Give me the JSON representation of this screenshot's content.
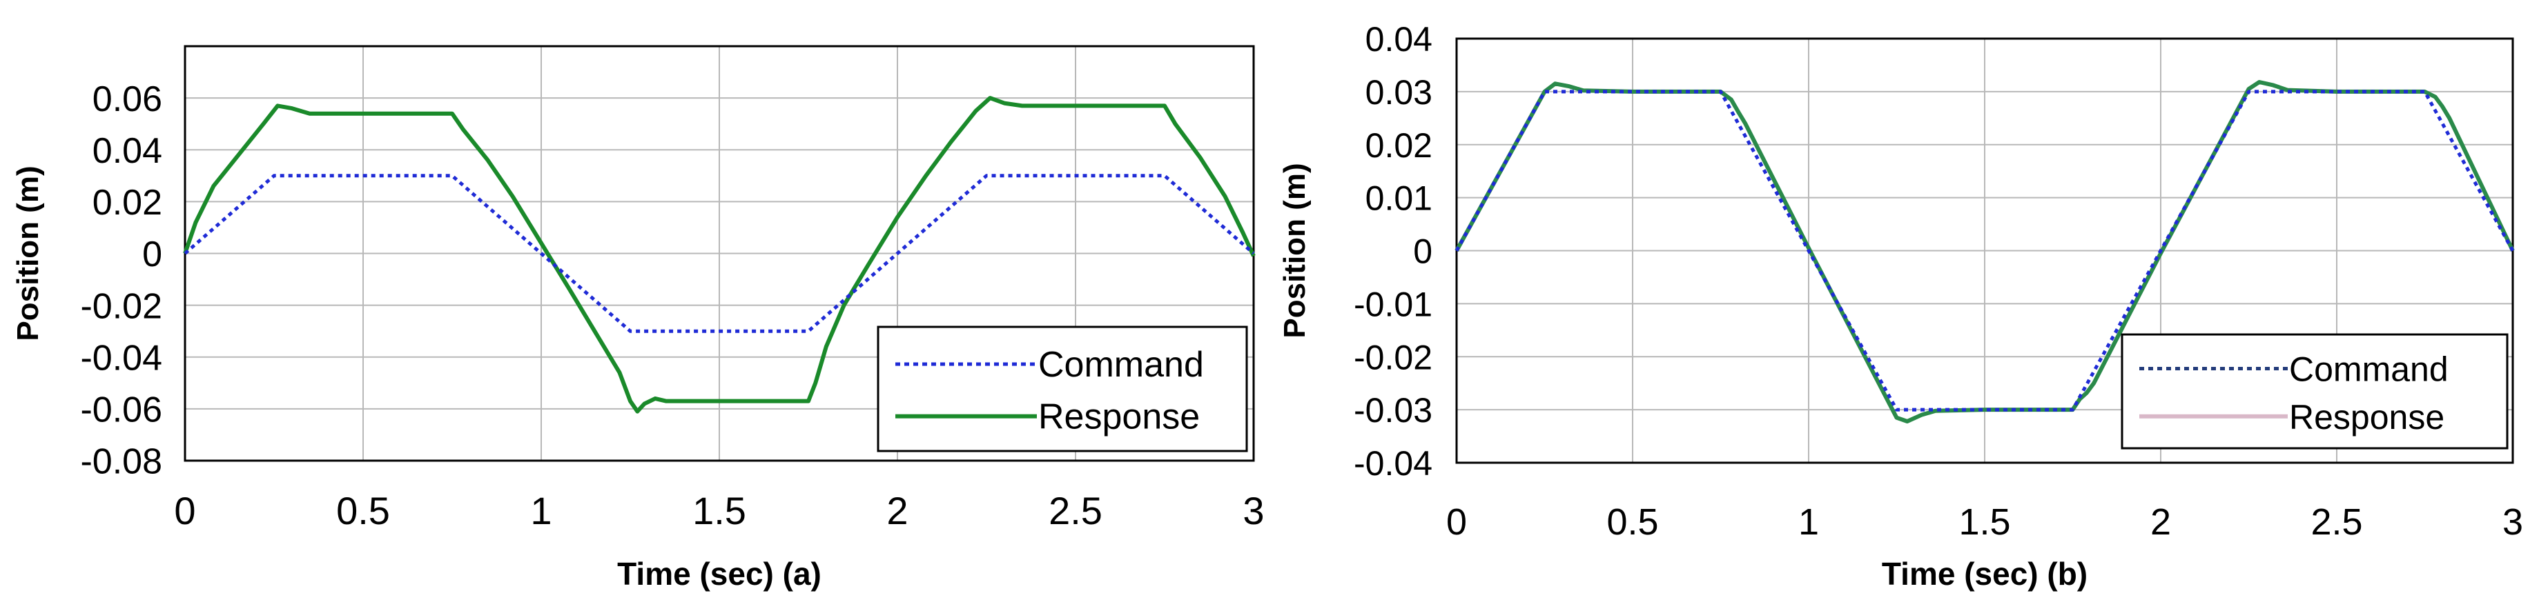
{
  "colors": {
    "command": "#1f2bd6",
    "response_a": "#1a8a2a",
    "response_b": "#2a8a4a",
    "grid": "#b8b8b8",
    "legend_cmd_b": "#233b7a",
    "legend_resp_b": "#d9b8c8"
  },
  "chart_data": [
    {
      "type": "line",
      "title": "",
      "xlabel": "Time (sec) (a)",
      "ylabel": "Position (m)",
      "xlim": [
        0,
        3
      ],
      "ylim": [
        -0.08,
        0.08
      ],
      "xticks": [
        0,
        0.5,
        1,
        1.5,
        2,
        2.5,
        3
      ],
      "xtick_labels": [
        "0",
        "0.5",
        "1",
        "1.5",
        "2",
        "2.5",
        "3"
      ],
      "yticks": [
        -0.08,
        -0.06,
        -0.04,
        -0.02,
        0,
        0.02,
        0.04,
        0.06
      ],
      "ytick_labels": [
        "-0.08",
        "-0.06",
        "-0.04",
        "-0.02",
        "0",
        "0.02",
        "0.04",
        "0.06"
      ],
      "grid": true,
      "legend": "bottom-right",
      "series": [
        {
          "name": "Command",
          "style": "dotted",
          "x": [
            0,
            0.25,
            0.75,
            1.25,
            1.75,
            2.25,
            2.75,
            3
          ],
          "y": [
            0,
            0.03,
            0.03,
            -0.03,
            -0.03,
            0.03,
            0.03,
            0
          ]
        },
        {
          "name": "Response",
          "style": "solid",
          "x": [
            0,
            0.03,
            0.08,
            0.15,
            0.22,
            0.26,
            0.3,
            0.35,
            0.5,
            0.75,
            0.78,
            0.85,
            0.92,
            1.0,
            1.08,
            1.15,
            1.22,
            1.25,
            1.27,
            1.29,
            1.32,
            1.35,
            1.5,
            1.75,
            1.77,
            1.8,
            1.85,
            1.92,
            2.0,
            2.08,
            2.15,
            2.22,
            2.26,
            2.3,
            2.35,
            2.5,
            2.75,
            2.78,
            2.85,
            2.92,
            2.97,
            3.0
          ],
          "y": [
            0,
            0.012,
            0.026,
            0.038,
            0.05,
            0.057,
            0.056,
            0.054,
            0.054,
            0.054,
            0.048,
            0.036,
            0.022,
            0.004,
            -0.014,
            -0.03,
            -0.046,
            -0.057,
            -0.061,
            -0.058,
            -0.056,
            -0.057,
            -0.057,
            -0.057,
            -0.05,
            -0.036,
            -0.02,
            -0.004,
            0.014,
            0.03,
            0.043,
            0.055,
            0.06,
            0.058,
            0.057,
            0.057,
            0.057,
            0.05,
            0.037,
            0.022,
            0.008,
            -0.001
          ]
        }
      ]
    },
    {
      "type": "line",
      "title": "",
      "xlabel": "Time (sec) (b)",
      "ylabel": "Position (m)",
      "xlim": [
        0,
        3
      ],
      "ylim": [
        -0.04,
        0.04
      ],
      "xticks": [
        0,
        0.5,
        1,
        1.5,
        2,
        2.5,
        3
      ],
      "xtick_labels": [
        "0",
        "0.5",
        "1",
        "1.5",
        "2",
        "2.5",
        "3"
      ],
      "yticks": [
        -0.04,
        -0.03,
        -0.02,
        -0.01,
        0,
        0.01,
        0.02,
        0.03,
        0.04
      ],
      "ytick_labels": [
        "-0.04",
        "-0.03",
        "-0.02",
        "-0.01",
        "0",
        "0.01",
        "0.02",
        "0.03",
        "0.04"
      ],
      "grid": true,
      "legend": "bottom-right",
      "series": [
        {
          "name": "Command",
          "style": "dotted",
          "x": [
            0,
            0.25,
            0.75,
            1.25,
            1.75,
            2.25,
            2.75,
            3
          ],
          "y": [
            0,
            0.03,
            0.03,
            -0.03,
            -0.03,
            0.03,
            0.03,
            0
          ]
        },
        {
          "name": "Response",
          "style": "solid",
          "x": [
            0,
            0.25,
            0.28,
            0.32,
            0.36,
            0.5,
            0.75,
            0.78,
            0.8,
            0.82,
            1.0,
            1.25,
            1.28,
            1.32,
            1.36,
            1.5,
            1.75,
            1.77,
            1.79,
            1.81,
            2.0,
            2.25,
            2.28,
            2.32,
            2.36,
            2.5,
            2.75,
            2.78,
            2.8,
            2.82,
            3.0
          ],
          "y": [
            0,
            0.03,
            0.0315,
            0.031,
            0.0302,
            0.03,
            0.03,
            0.0285,
            0.0262,
            0.024,
            0.0005,
            -0.0315,
            -0.0322,
            -0.031,
            -0.0302,
            -0.03,
            -0.03,
            -0.028,
            -0.0268,
            -0.025,
            -0.0005,
            0.0305,
            0.0318,
            0.0312,
            0.0303,
            0.03,
            0.03,
            0.029,
            0.0272,
            0.025,
            0.0
          ]
        }
      ]
    }
  ]
}
